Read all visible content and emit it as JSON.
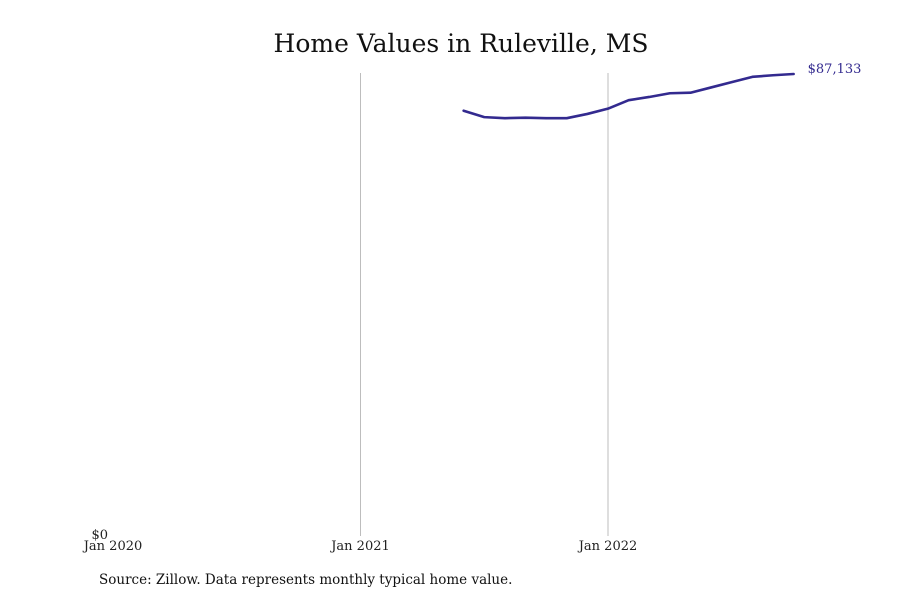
{
  "chart_data": {
    "type": "line",
    "title": "Home Values in Ruleville, MS",
    "xlabel": "",
    "ylabel": "",
    "x_ticks": [
      "Jan 2020",
      "Jan 2021",
      "Jan 2022"
    ],
    "y_ticks": [
      "$0"
    ],
    "ylim": [
      0,
      87133
    ],
    "xlim": [
      "2020-01",
      "2022-11"
    ],
    "grid": "vertical lines at yearly ticks",
    "line_color": "#332a8f",
    "end_label": "$87,133",
    "series": [
      {
        "points": [
          {
            "x": "2021-06",
            "y": 80200
          },
          {
            "x": "2021-07",
            "y": 79000
          },
          {
            "x": "2021-08",
            "y": 78800
          },
          {
            "x": "2021-09",
            "y": 78900
          },
          {
            "x": "2021-10",
            "y": 78800
          },
          {
            "x": "2021-11",
            "y": 78800
          },
          {
            "x": "2021-12",
            "y": 79600
          },
          {
            "x": "2022-01",
            "y": 80600
          },
          {
            "x": "2022-02",
            "y": 82200
          },
          {
            "x": "2022-03",
            "y": 82800
          },
          {
            "x": "2022-04",
            "y": 83500
          },
          {
            "x": "2022-05",
            "y": 83600
          },
          {
            "x": "2022-06",
            "y": 84600
          },
          {
            "x": "2022-07",
            "y": 85600
          },
          {
            "x": "2022-08",
            "y": 86600
          },
          {
            "x": "2022-09",
            "y": 86900
          },
          {
            "x": "2022-10",
            "y": 87133
          }
        ]
      }
    ]
  },
  "footer": {
    "source": "Source: Zillow. Data represents monthly typical home value."
  }
}
